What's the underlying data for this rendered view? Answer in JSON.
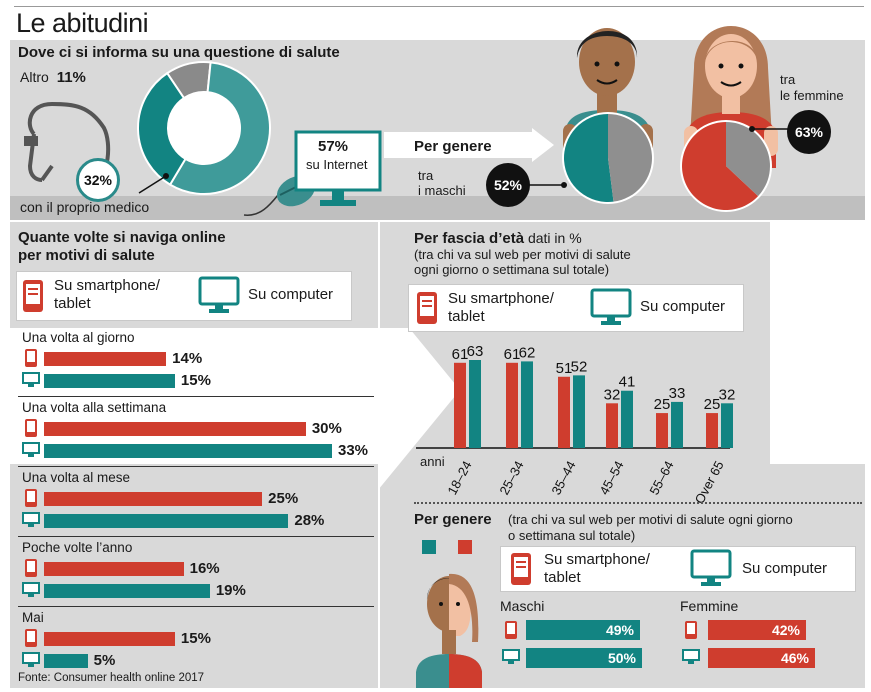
{
  "title": "Le abitudini",
  "section1": {
    "heading": "Dove ci si informa su una questione di salute",
    "altro_label": "Altro",
    "altro_value": "11%",
    "medico_value": "32%",
    "medico_label": "con il proprio medico",
    "internet_value": "57%",
    "internet_label": "su Internet",
    "per_genere": "Per genere",
    "maschi_label_1": "tra",
    "maschi_label_2": "i maschi",
    "maschi_value": "52%",
    "femmine_label_1": "tra",
    "femmine_label_2": "le femmine",
    "femmine_value": "63%"
  },
  "section2": {
    "heading_1": "Quante volte si naviga online",
    "heading_2": "per motivi di salute",
    "legend_smartphone_1": "Su smartphone/",
    "legend_smartphone_2": "tablet",
    "legend_computer": "Su computer",
    "rows": [
      {
        "label": "Una volta al giorno",
        "smartphone": "14%",
        "computer": "15%"
      },
      {
        "label": "Una volta alla settimana",
        "smartphone": "30%",
        "computer": "33%"
      },
      {
        "label": "Una volta al mese",
        "smartphone": "25%",
        "computer": "28%"
      },
      {
        "label": "Poche volte l’anno",
        "smartphone": "16%",
        "computer": "19%"
      },
      {
        "label": "Mai",
        "smartphone": "15%",
        "computer": "5%"
      }
    ],
    "source": "Fonte: Consumer health online 2017"
  },
  "section3": {
    "heading_bold": "Per fascia d’età",
    "heading_rest": " dati in %",
    "sub_1": "(tra chi va sul web per motivi di salute",
    "sub_2": "ogni giorno o settimana sul totale)",
    "legend_smartphone_1": "Su smartphone/",
    "legend_smartphone_2": "tablet",
    "legend_computer": "Su computer",
    "anni": "anni"
  },
  "section4": {
    "heading": "Per genere",
    "sub_1": "(tra chi va sul web per motivi di salute ogni giorno",
    "sub_2": "o settimana sul totale)",
    "legend_smartphone_1": "Su smartphone/",
    "legend_smartphone_2": "tablet",
    "legend_computer": "Su computer",
    "maschi": "Maschi",
    "femmine": "Femmine",
    "maschi_smartphone": "49%",
    "maschi_computer": "50%",
    "femmine_smartphone": "42%",
    "femmine_computer": "46%"
  },
  "colors": {
    "smartphone": "#cf3d2e",
    "computer": "#128482",
    "grey": "#d9d9d9",
    "dark": "#111111"
  },
  "chart_data": [
    {
      "type": "pie",
      "categories": [
        "Altro",
        "con il proprio medico",
        "su Internet"
      ],
      "values": [
        11,
        32,
        57
      ],
      "title": "Dove ci si informa su una questione di salute"
    },
    {
      "type": "bar",
      "title": "Quante volte si naviga online per motivi di salute",
      "categories": [
        "Una volta al giorno",
        "Una volta alla settimana",
        "Una volta al mese",
        "Poche volte l’anno",
        "Mai"
      ],
      "series": [
        {
          "name": "Su smartphone/ tablet",
          "values": [
            14,
            30,
            25,
            16,
            15
          ]
        },
        {
          "name": "Su computer",
          "values": [
            15,
            33,
            28,
            19,
            5
          ]
        }
      ]
    },
    {
      "type": "bar",
      "title": "Per fascia d’età",
      "xlabel": "anni",
      "categories": [
        "18-24",
        "25-34",
        "35-44",
        "45-54",
        "55-64",
        "Over 65"
      ],
      "series": [
        {
          "name": "Su smartphone/ tablet",
          "values": [
            61,
            61,
            51,
            32,
            25,
            25
          ]
        },
        {
          "name": "Su computer",
          "values": [
            63,
            62,
            52,
            41,
            33,
            32
          ]
        }
      ]
    },
    {
      "type": "bar",
      "title": "Per genere",
      "categories": [
        "Maschi",
        "Femmine"
      ],
      "series": [
        {
          "name": "Su smartphone/ tablet",
          "values": [
            49,
            42
          ]
        },
        {
          "name": "Su computer",
          "values": [
            50,
            46
          ]
        }
      ]
    }
  ]
}
